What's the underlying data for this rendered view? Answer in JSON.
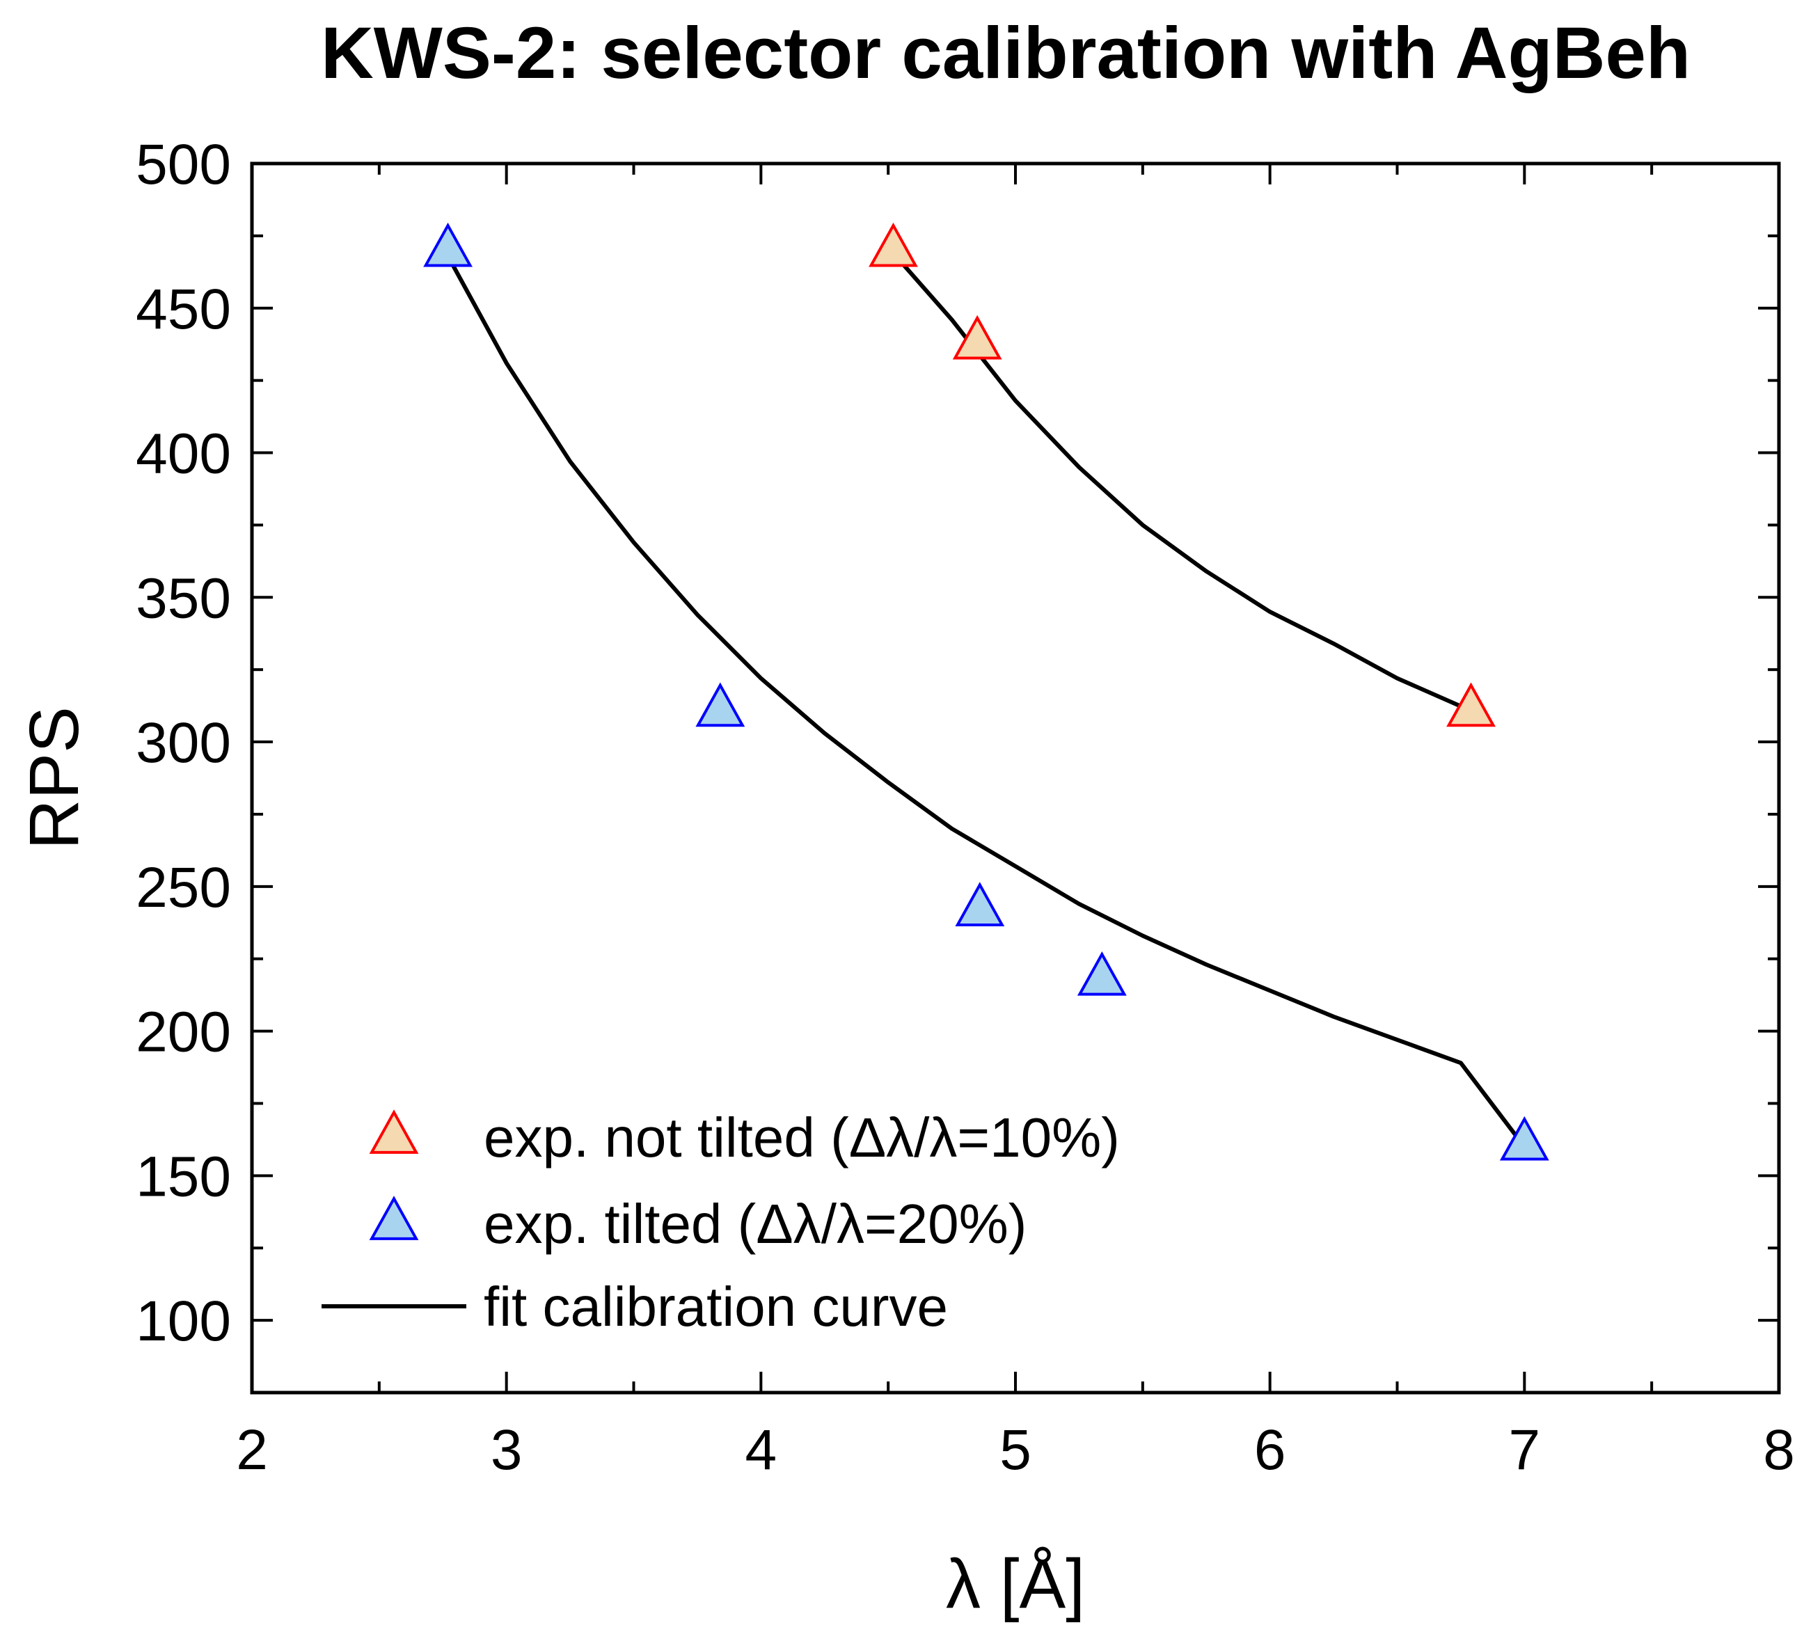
{
  "chart_data": {
    "type": "scatter",
    "title": "KWS-2: selector calibration with AgBeh",
    "xlabel": "λ [Å]",
    "ylabel": "RPS",
    "xlim": [
      2,
      8
    ],
    "ylim": [
      75,
      500
    ],
    "x_ticks": [
      2,
      3,
      4,
      5,
      6,
      7,
      8
    ],
    "y_ticks": [
      100,
      150,
      200,
      250,
      300,
      350,
      400,
      450,
      500
    ],
    "x_tick_labels": [
      "2",
      "3",
      "4",
      "5",
      "6",
      "7",
      "8"
    ],
    "y_tick_labels": [
      "100",
      "150",
      "200",
      "250",
      "300",
      "350",
      "400",
      "450",
      "500"
    ],
    "legend_position": "bottom-left",
    "series": [
      {
        "name": "exp. not tilted (Δλ/λ=10%)",
        "kind": "marker",
        "marker": "triangle",
        "edge_color": "#ff0000",
        "fill_color": "#f5d9b0",
        "x": [
          4.52,
          4.85,
          6.79
        ],
        "y": [
          470,
          438,
          311
        ]
      },
      {
        "name": "exp. tilted (Δλ/λ=20%)",
        "kind": "marker",
        "marker": "triangle",
        "edge_color": "#0000ff",
        "fill_color": "#a8d4f0",
        "x": [
          2.77,
          3.84,
          4.86,
          5.34,
          7.0
        ],
        "y": [
          470,
          311,
          242,
          218,
          161
        ]
      },
      {
        "name": "fit calibration curve",
        "kind": "line",
        "color": "#000000",
        "segments": [
          {
            "x": [
              2.77,
              3.0,
              3.25,
              3.5,
              3.75,
              4.0,
              4.25,
              4.5,
              4.75,
              5.0,
              5.25,
              5.5,
              5.75,
              6.0,
              6.25,
              6.5,
              6.75,
              7.0
            ],
            "y": [
              468,
              431,
              397,
              369,
              344,
              322,
              303,
              286,
              270,
              257,
              244,
              233,
              223,
              214,
              205,
              197,
              189,
              160
            ]
          },
          {
            "x": [
              4.52,
              4.75,
              5.0,
              5.25,
              5.5,
              5.75,
              6.0,
              6.25,
              6.5,
              6.81
            ],
            "y": [
              469,
              446,
              418,
              395,
              375,
              359,
              345,
              334,
              322,
              310
            ]
          }
        ]
      }
    ]
  }
}
